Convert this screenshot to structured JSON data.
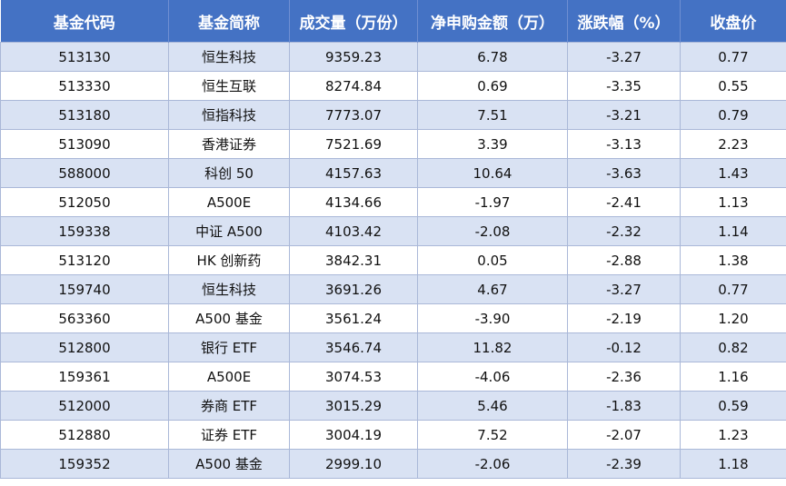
{
  "table": {
    "header": [
      "基金代码",
      "基金简称",
      "成交量（万份）",
      "净申购金额（万）",
      "涨跌幅（%）",
      "收盘价"
    ],
    "rows": [
      [
        "513130",
        "恒生科技",
        "9359.23",
        "6.78",
        "-3.27",
        "0.77"
      ],
      [
        "513330",
        "恒生互联",
        "8274.84",
        "0.69",
        "-3.35",
        "0.55"
      ],
      [
        "513180",
        "恒指科技",
        "7773.07",
        "7.51",
        "-3.21",
        "0.79"
      ],
      [
        "513090",
        "香港证券",
        "7521.69",
        "3.39",
        "-3.13",
        "2.23"
      ],
      [
        "588000",
        "科创 50",
        "4157.63",
        "10.64",
        "-3.63",
        "1.43"
      ],
      [
        "512050",
        "A500E",
        "4134.66",
        "-1.97",
        "-2.41",
        "1.13"
      ],
      [
        "159338",
        "中证 A500",
        "4103.42",
        "-2.08",
        "-2.32",
        "1.14"
      ],
      [
        "513120",
        "HK 创新药",
        "3842.31",
        "0.05",
        "-2.88",
        "1.38"
      ],
      [
        "159740",
        "恒生科技",
        "3691.26",
        "4.67",
        "-3.27",
        "0.77"
      ],
      [
        "563360",
        "A500 基金",
        "3561.24",
        "-3.90",
        "-2.19",
        "1.20"
      ],
      [
        "512800",
        "银行 ETF",
        "3546.74",
        "11.82",
        "-0.12",
        "0.82"
      ],
      [
        "159361",
        "A500E",
        "3074.53",
        "-4.06",
        "-2.36",
        "1.16"
      ],
      [
        "512000",
        "券商 ETF",
        "3015.29",
        "5.46",
        "-1.83",
        "0.59"
      ],
      [
        "512880",
        "证券 ETF",
        "3004.19",
        "7.52",
        "-2.07",
        "1.23"
      ],
      [
        "159352",
        "A500 基金",
        "2999.10",
        "-2.06",
        "-2.39",
        "1.18"
      ]
    ]
  }
}
